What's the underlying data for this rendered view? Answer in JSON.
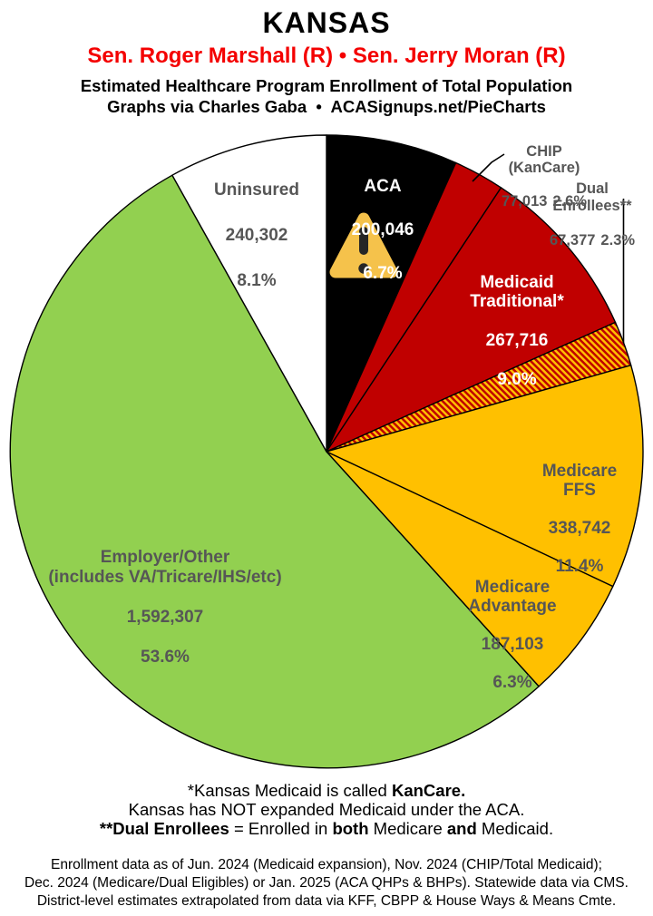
{
  "header": {
    "state": "KANSAS",
    "senators": "Sen. Roger Marshall (R) • Sen. Jerry Moran (R)",
    "subtitle1": "Estimated Healthcare Program Enrollment of Total Population",
    "subtitle2": "Graphs via Charles Gaba  •  ACASignups.net/PieCharts"
  },
  "chart_data": {
    "type": "pie",
    "title": "Estimated Healthcare Program Enrollment of Total Population",
    "start_angle": "12 o'clock, clockwise",
    "total_pct": 100.0,
    "slices": [
      {
        "name": "ACA",
        "value": 200046,
        "value_display": "200,046",
        "pct": 6.7,
        "pct_display": "6.7%",
        "color": "#000000",
        "label_color": "#FFFFFF",
        "label_placement": "inside",
        "icon": "warning-triangle"
      },
      {
        "name": "CHIP (KanCare)",
        "value": 77013,
        "value_display": "77,013",
        "pct": 2.6,
        "pct_display": "2.6%",
        "color": "#C00000",
        "label_color": "#565656",
        "label_placement": "callout"
      },
      {
        "name": "Medicaid\nTraditional*",
        "value": 267716,
        "value_display": "267,716",
        "pct": 9.0,
        "pct_display": "9.0%",
        "color": "#C00000",
        "label_color": "#FFFFFF",
        "label_placement": "inside"
      },
      {
        "name": "Dual Enrollees**",
        "value": 67377,
        "value_display": "67,377",
        "pct": 2.3,
        "pct_display": "2.3%",
        "color": "hatch",
        "label_color": "#565656",
        "label_placement": "callout"
      },
      {
        "name": "Medicare FFS",
        "value": 338742,
        "value_display": "338,742",
        "pct": 11.4,
        "pct_display": "11.4%",
        "color": "#FFC000",
        "label_color": "#565656",
        "label_placement": "inside"
      },
      {
        "name": "Medicare\nAdvantage",
        "value": 187103,
        "value_display": "187,103",
        "pct": 6.3,
        "pct_display": "6.3%",
        "color": "#FFC000",
        "label_color": "#565656",
        "label_placement": "inside"
      },
      {
        "name": "Employer/Other\n(includes VA/Tricare/IHS/etc)",
        "value": 1592307,
        "value_display": "1,592,307",
        "pct": 53.6,
        "pct_display": "53.6%",
        "color": "#92D050",
        "label_color": "#565656",
        "label_placement": "inside"
      },
      {
        "name": "Uninsured",
        "value": 240302,
        "value_display": "240,302",
        "pct": 8.1,
        "pct_display": "8.1%",
        "color": "#FFFFFF",
        "label_color": "#565656",
        "label_placement": "inside"
      }
    ],
    "hatch": {
      "stripe": "#C00000",
      "background": "#FFC000"
    },
    "colors": {
      "senator_red": "#F40000",
      "label_gray": "#565656",
      "slice_outline": "#000000",
      "warning_triangle": "#F5C24B",
      "warning_glyph": "#262626"
    },
    "legend": "none (direct slice labels with two callouts)"
  },
  "notes": {
    "l1_pre": "*Kansas Medicaid is called ",
    "l1_bold": "KanCare.",
    "l2": "Kansas has NOT expanded Medicaid under the ACA.",
    "l3_b1": "**Dual Enrollees",
    "l3_t1": " = Enrolled in ",
    "l3_b2": "both",
    "l3_t2": " Medicare ",
    "l3_b3": "and",
    "l3_t3": " Medicaid."
  },
  "fineprint": {
    "l1": "Enrollment data as of Jun. 2024 (Medicaid expansion), Nov. 2024 (CHIP/Total Medicaid);",
    "l2": "Dec. 2024 (Medicare/Dual Eligibles) or Jan. 2025 (ACA QHPs & BHPs). Statewide data via CMS.",
    "l3": "District-level estimates extrapolated from data via KFF, CBPP & House Ways & Means Cmte."
  }
}
